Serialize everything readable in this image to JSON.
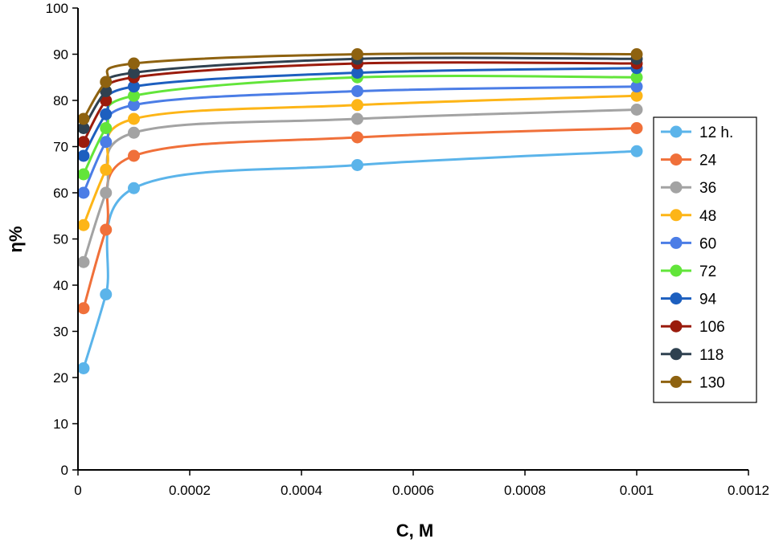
{
  "chart_data": {
    "type": "line",
    "title": "",
    "xlabel": "C, M",
    "ylabel": "η%",
    "xlim": [
      0,
      0.0012
    ],
    "ylim": [
      0,
      100
    ],
    "x_ticks": [
      0,
      0.0002,
      0.0004,
      0.0006,
      0.0008,
      0.001,
      0.0012
    ],
    "x_tick_labels": [
      "0",
      "0.0002",
      "0.0004",
      "0.0006",
      "0.0008",
      "0.001",
      "0.0012"
    ],
    "y_ticks": [
      0,
      10,
      20,
      30,
      40,
      50,
      60,
      70,
      80,
      90,
      100
    ],
    "y_tick_labels": [
      "0",
      "10",
      "20",
      "30",
      "40",
      "50",
      "60",
      "70",
      "80",
      "90",
      "100"
    ],
    "grid": false,
    "smooth_lines": true,
    "legend_position": "right",
    "x": [
      1e-05,
      5e-05,
      0.0001,
      0.0005,
      0.001
    ],
    "series": [
      {
        "name": "12 h.",
        "color": "#5BB4EA",
        "values": [
          22,
          38,
          61,
          66,
          69
        ]
      },
      {
        "name": "24",
        "color": "#F0703A",
        "values": [
          35,
          52,
          68,
          72,
          74
        ]
      },
      {
        "name": "36",
        "color": "#A3A3A3",
        "values": [
          45,
          60,
          73,
          76,
          78
        ]
      },
      {
        "name": "48",
        "color": "#FDB517",
        "values": [
          53,
          65,
          76,
          79,
          81
        ]
      },
      {
        "name": "60",
        "color": "#4B7DE6",
        "values": [
          60,
          71,
          79,
          82,
          83
        ]
      },
      {
        "name": "72",
        "color": "#62E53A",
        "values": [
          64,
          74,
          81,
          85,
          85
        ]
      },
      {
        "name": "94",
        "color": "#1D5FBF",
        "values": [
          68,
          77,
          83,
          86,
          87
        ]
      },
      {
        "name": "106",
        "color": "#9A1B0C",
        "values": [
          71,
          80,
          85,
          88,
          88
        ]
      },
      {
        "name": "118",
        "color": "#2F4150",
        "values": [
          74,
          82,
          86,
          89,
          89
        ]
      },
      {
        "name": "130",
        "color": "#8E6210",
        "values": [
          76,
          84,
          88,
          90,
          90
        ]
      }
    ]
  }
}
